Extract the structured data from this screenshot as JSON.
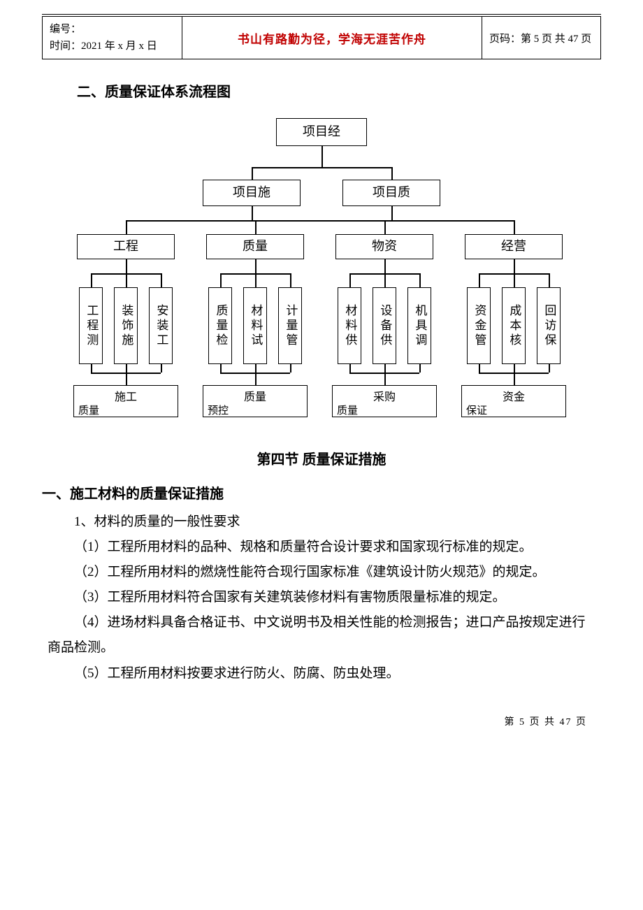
{
  "header": {
    "label_id": "编号：",
    "label_time": "时间：",
    "time_value": "2021 年 x 月 x 日",
    "center_text": "书山有路勤为径，学海无涯苦作舟",
    "pager_label": "页码：",
    "pager_value": "第 5 页 共 47 页"
  },
  "section_heading": "二、质量保证体系流程图",
  "flowchart": {
    "type": "tree",
    "background_color": "#ffffff",
    "border_color": "#000000",
    "root": "项目经",
    "level2": [
      "项目施",
      "项目质"
    ],
    "level3": [
      "工程",
      "质量",
      "物资",
      "经营"
    ],
    "leaves": [
      [
        "工程测",
        "装饰施",
        "安装工"
      ],
      [
        "质量检",
        "材料试",
        "计量管"
      ],
      [
        "材料供",
        "设备供",
        "机具调"
      ],
      [
        "资金管",
        "成本核",
        "回访保"
      ]
    ],
    "bottoms": [
      {
        "main": "施工",
        "sub": "质量"
      },
      {
        "main": "质量",
        "sub": "预控"
      },
      {
        "main": "采购",
        "sub": "质量"
      },
      {
        "main": "资金",
        "sub": "保证"
      }
    ],
    "node_fontsize": 18,
    "leaf_fontsize": 17,
    "line_width": 1.5
  },
  "section4_title": "第四节  质量保证措施",
  "sub1_heading": "一、施工材料的质量保证措施",
  "paragraphs": [
    "1、材料的质量的一般性要求",
    "（1）工程所用材料的品种、规格和质量符合设计要求和国家现行标准的规定。",
    "（2）工程所用材料的燃烧性能符合现行国家标准《建筑设计防火规范》的规定。",
    "（3）工程所用材料符合国家有关建筑装修材料有害物质限量标准的规定。",
    "（4）进场材料具备合格证书、中文说明书及相关性能的检测报告；进口产品按规定进行商品检测。",
    "（5）工程所用材料按要求进行防火、防腐、防虫处理。"
  ],
  "footer": "第 5 页 共 47 页"
}
